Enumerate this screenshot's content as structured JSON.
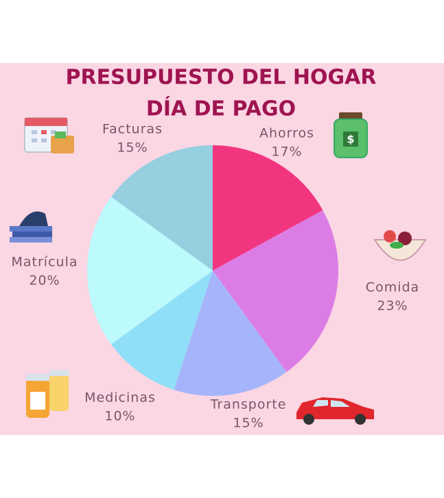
{
  "chart_data": {
    "type": "pie",
    "title": "PRESUPUESTO DEL HOGAR",
    "subtitle": "DÍA DE PAGO",
    "categories": [
      "Ahorros",
      "Comida",
      "Transporte",
      "Medicinas",
      "Matrícula",
      "Facturas"
    ],
    "values": [
      17,
      23,
      15,
      10,
      20,
      15
    ],
    "value_labels": [
      "17%",
      "23%",
      "15%",
      "10%",
      "20%",
      "15%"
    ],
    "colors": [
      "#f2357f",
      "#dc7de6",
      "#a6b5fb",
      "#90dff8",
      "#bcfafc",
      "#95cfe0"
    ]
  }
}
